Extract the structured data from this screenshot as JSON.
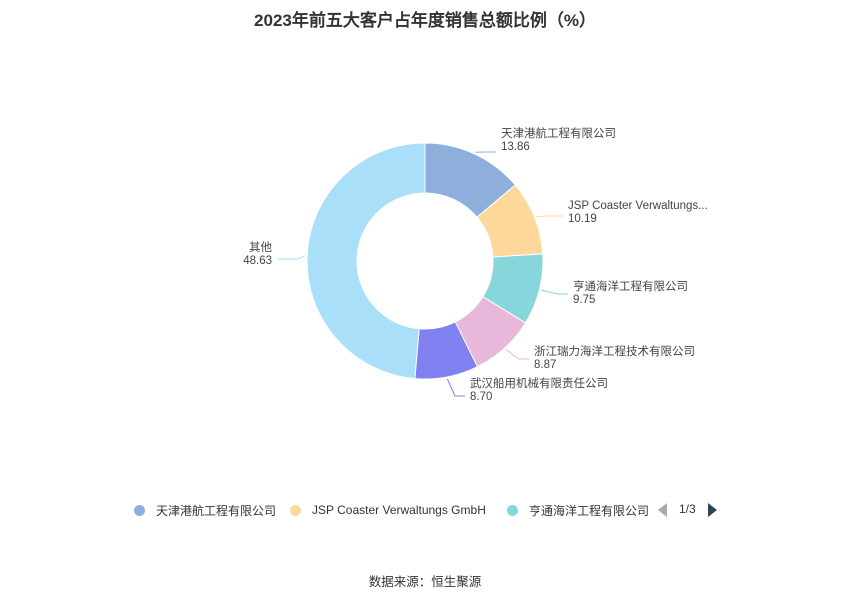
{
  "chart_data": {
    "type": "pie",
    "title": "2023年前五大客户占年度销售总额比例（%）",
    "slices": [
      {
        "name": "天津港航工程有限公司",
        "label": "天津港航工程有限公司",
        "value": 13.86,
        "color": "#8eaedc"
      },
      {
        "name": "JSP Coaster Verwaltungs GmbH",
        "label": "JSP Coaster Verwaltungs...",
        "value": 10.19,
        "color": "#fdd89a"
      },
      {
        "name": "亨通海洋工程有限公司",
        "label": "亨通海洋工程有限公司",
        "value": 9.75,
        "color": "#86d6dc"
      },
      {
        "name": "浙江瑞力海洋工程技术有限公司",
        "label": "浙江瑞力海洋工程技术有限公司",
        "value": 8.87,
        "color": "#e7b8d9"
      },
      {
        "name": "武汉船用机械有限责任公司",
        "label": "武汉船用机械有限责任公司",
        "value": 8.7,
        "color": "#8080f0"
      },
      {
        "name": "其他",
        "label": "其他",
        "value": 48.63,
        "color": "#a9dff8"
      }
    ],
    "value_format": "2dp",
    "legend": {
      "position": "bottom",
      "visible_items": [
        0,
        1,
        2
      ],
      "page": "1/3"
    }
  },
  "source": "数据来源：恒生聚源"
}
